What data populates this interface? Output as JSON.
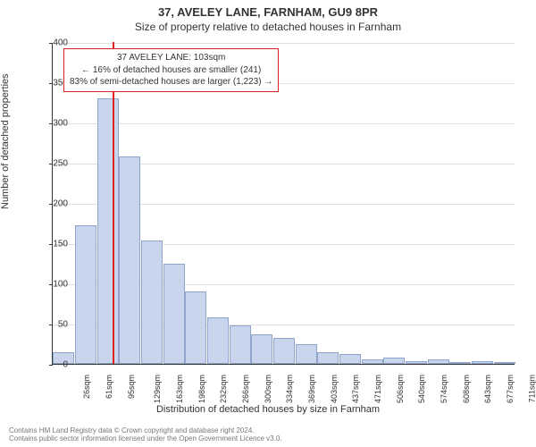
{
  "title": "37, AVELEY LANE, FARNHAM, GU9 8PR",
  "subtitle": "Size of property relative to detached houses in Farnham",
  "ylabel": "Number of detached properties",
  "xlabel": "Distribution of detached houses by size in Farnham",
  "chart": {
    "type": "histogram",
    "ylim": [
      0,
      400
    ],
    "ytick_step": 50,
    "categories": [
      "26sqm",
      "61sqm",
      "95sqm",
      "129sqm",
      "163sqm",
      "198sqm",
      "232sqm",
      "266sqm",
      "300sqm",
      "334sqm",
      "369sqm",
      "403sqm",
      "437sqm",
      "471sqm",
      "506sqm",
      "540sqm",
      "574sqm",
      "608sqm",
      "643sqm",
      "677sqm",
      "711sqm"
    ],
    "values": [
      14,
      172,
      330,
      258,
      153,
      125,
      90,
      58,
      48,
      37,
      32,
      24,
      14,
      12,
      6,
      8,
      3,
      6,
      2,
      3,
      2
    ],
    "bar_fill": "#c8d5ec",
    "bar_stroke": "#8fa5cc",
    "grid_color": "#e0e0e0",
    "background_color": "#ffffff",
    "marker": {
      "position_sqm": 103,
      "color": "#dd2222"
    }
  },
  "callout": {
    "line1": "37 AVELEY LANE: 103sqm",
    "line2": "← 16% of detached houses are smaller (241)",
    "line3": "83% of semi-detached houses are larger (1,223) →"
  },
  "attribution": {
    "line1": "Contains HM Land Registry data © Crown copyright and database right 2024.",
    "line2": "Contains public sector information licensed under the Open Government Licence v3.0."
  }
}
